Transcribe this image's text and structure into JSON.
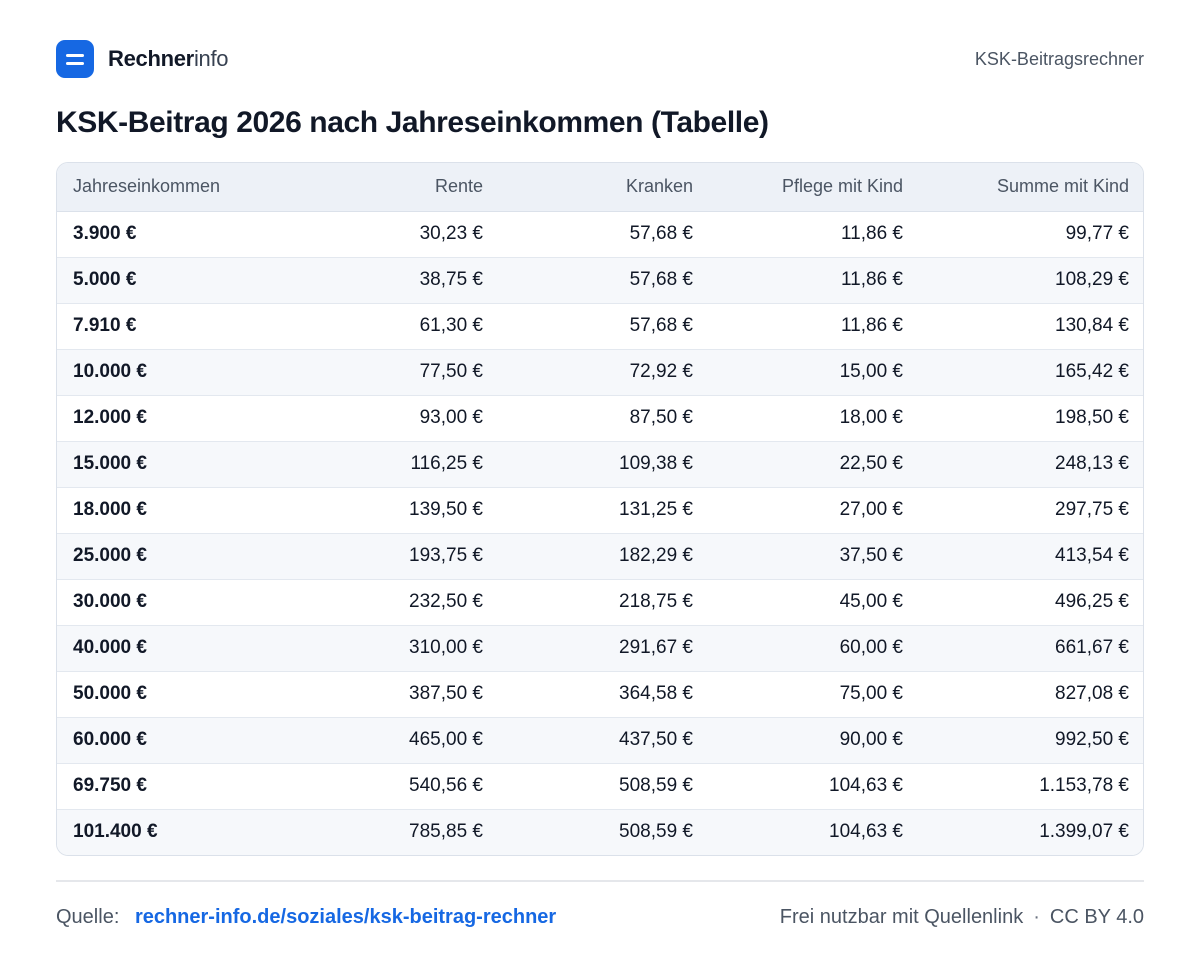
{
  "brand": {
    "name_bold": "Rechner",
    "name_light": "info",
    "tag": "KSK-Beitragsrechner"
  },
  "title": "KSK-Beitrag 2026 nach Jahreseinkommen (Tabelle)",
  "table": {
    "headers": [
      "Jahreseinkommen",
      "Rente",
      "Kranken",
      "Pflege mit Kind",
      "Summe mit Kind"
    ],
    "rows": [
      [
        "3.900 €",
        "30,23 €",
        "57,68 €",
        "11,86 €",
        "99,77 €"
      ],
      [
        "5.000 €",
        "38,75 €",
        "57,68 €",
        "11,86 €",
        "108,29 €"
      ],
      [
        "7.910 €",
        "61,30 €",
        "57,68 €",
        "11,86 €",
        "130,84 €"
      ],
      [
        "10.000 €",
        "77,50 €",
        "72,92 €",
        "15,00 €",
        "165,42 €"
      ],
      [
        "12.000 €",
        "93,00 €",
        "87,50 €",
        "18,00 €",
        "198,50 €"
      ],
      [
        "15.000 €",
        "116,25 €",
        "109,38 €",
        "22,50 €",
        "248,13 €"
      ],
      [
        "18.000 €",
        "139,50 €",
        "131,25 €",
        "27,00 €",
        "297,75 €"
      ],
      [
        "25.000 €",
        "193,75 €",
        "182,29 €",
        "37,50 €",
        "413,54 €"
      ],
      [
        "30.000 €",
        "232,50 €",
        "218,75 €",
        "45,00 €",
        "496,25 €"
      ],
      [
        "40.000 €",
        "310,00 €",
        "291,67 €",
        "60,00 €",
        "661,67 €"
      ],
      [
        "50.000 €",
        "387,50 €",
        "364,58 €",
        "75,00 €",
        "827,08 €"
      ],
      [
        "60.000 €",
        "465,00 €",
        "437,50 €",
        "90,00 €",
        "992,50 €"
      ],
      [
        "69.750 €",
        "540,56 €",
        "508,59 €",
        "104,63 €",
        "1.153,78 €"
      ],
      [
        "101.400 €",
        "785,85 €",
        "508,59 €",
        "104,63 €",
        "1.399,07 €"
      ]
    ]
  },
  "footer": {
    "source_label": "Quelle:",
    "source_link": "rechner-info.de/soziales/ksk-beitrag-rechner",
    "usage": "Frei nutzbar mit Quellenlink",
    "separator": "·",
    "license": "CC BY 4.0"
  },
  "colors": {
    "accent": "#1668e3",
    "header_bg": "#edf1f7",
    "row_alt": "#f6f8fb",
    "border": "#dbe1ea"
  },
  "icons": {
    "logo": "list-lines-icon"
  }
}
